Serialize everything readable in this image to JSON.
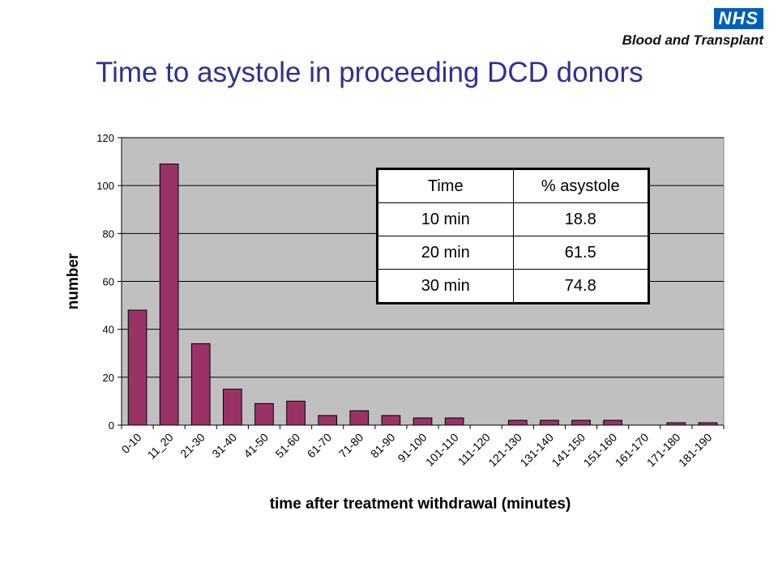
{
  "logo": {
    "badge": "NHS",
    "subtitle": "Blood and Transplant"
  },
  "slide_title": "Time to asystole in proceeding DCD donors",
  "chart_data": {
    "type": "bar",
    "xlabel": "time after treatment withdrawal (minutes)",
    "ylabel": "number",
    "ylim": [
      0,
      120
    ],
    "yticks": [
      0,
      20,
      40,
      60,
      80,
      100,
      120
    ],
    "grid": true,
    "colors": {
      "bar": "#993366",
      "plot_bg": "#c0c0c0",
      "grid": "#000000"
    },
    "categories": [
      "0-10",
      "11_20",
      "21-30",
      "31-40",
      "41-50",
      "51-60",
      "61-70",
      "71-80",
      "81-90",
      "91-100",
      "101-110",
      "111-120",
      "121-130",
      "131-140",
      "141-150",
      "151-160",
      "161-170",
      "171-180",
      "181-190"
    ],
    "values": [
      48,
      109,
      34,
      15,
      9,
      10,
      4,
      6,
      4,
      3,
      3,
      0,
      2,
      2,
      2,
      2,
      0,
      1,
      1
    ]
  },
  "table": {
    "headers": [
      "Time",
      "% asystole"
    ],
    "rows": [
      [
        "10 min",
        "18.8"
      ],
      [
        "20 min",
        "61.5"
      ],
      [
        "30 min",
        "74.8"
      ]
    ]
  }
}
